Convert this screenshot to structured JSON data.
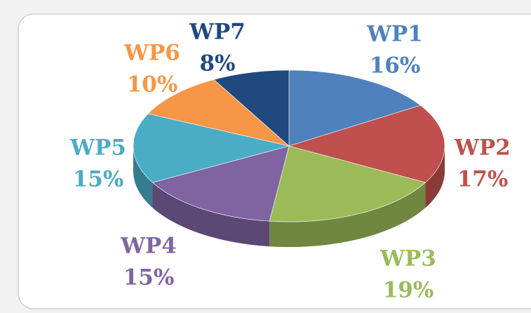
{
  "chart_data": {
    "type": "pie",
    "categories": [
      "WP1",
      "WP2",
      "WP3",
      "WP4",
      "WP5",
      "WP6",
      "WP7"
    ],
    "values": [
      16,
      17,
      19,
      15,
      15,
      10,
      8
    ],
    "value_labels": [
      "16%",
      "17%",
      "19%",
      "15%",
      "15%",
      "10%",
      "8%"
    ],
    "colors": [
      "#4f81bd",
      "#c0504d",
      "#9bbb59",
      "#8064a2",
      "#4bacc6",
      "#f79646",
      "#1f497d"
    ]
  }
}
